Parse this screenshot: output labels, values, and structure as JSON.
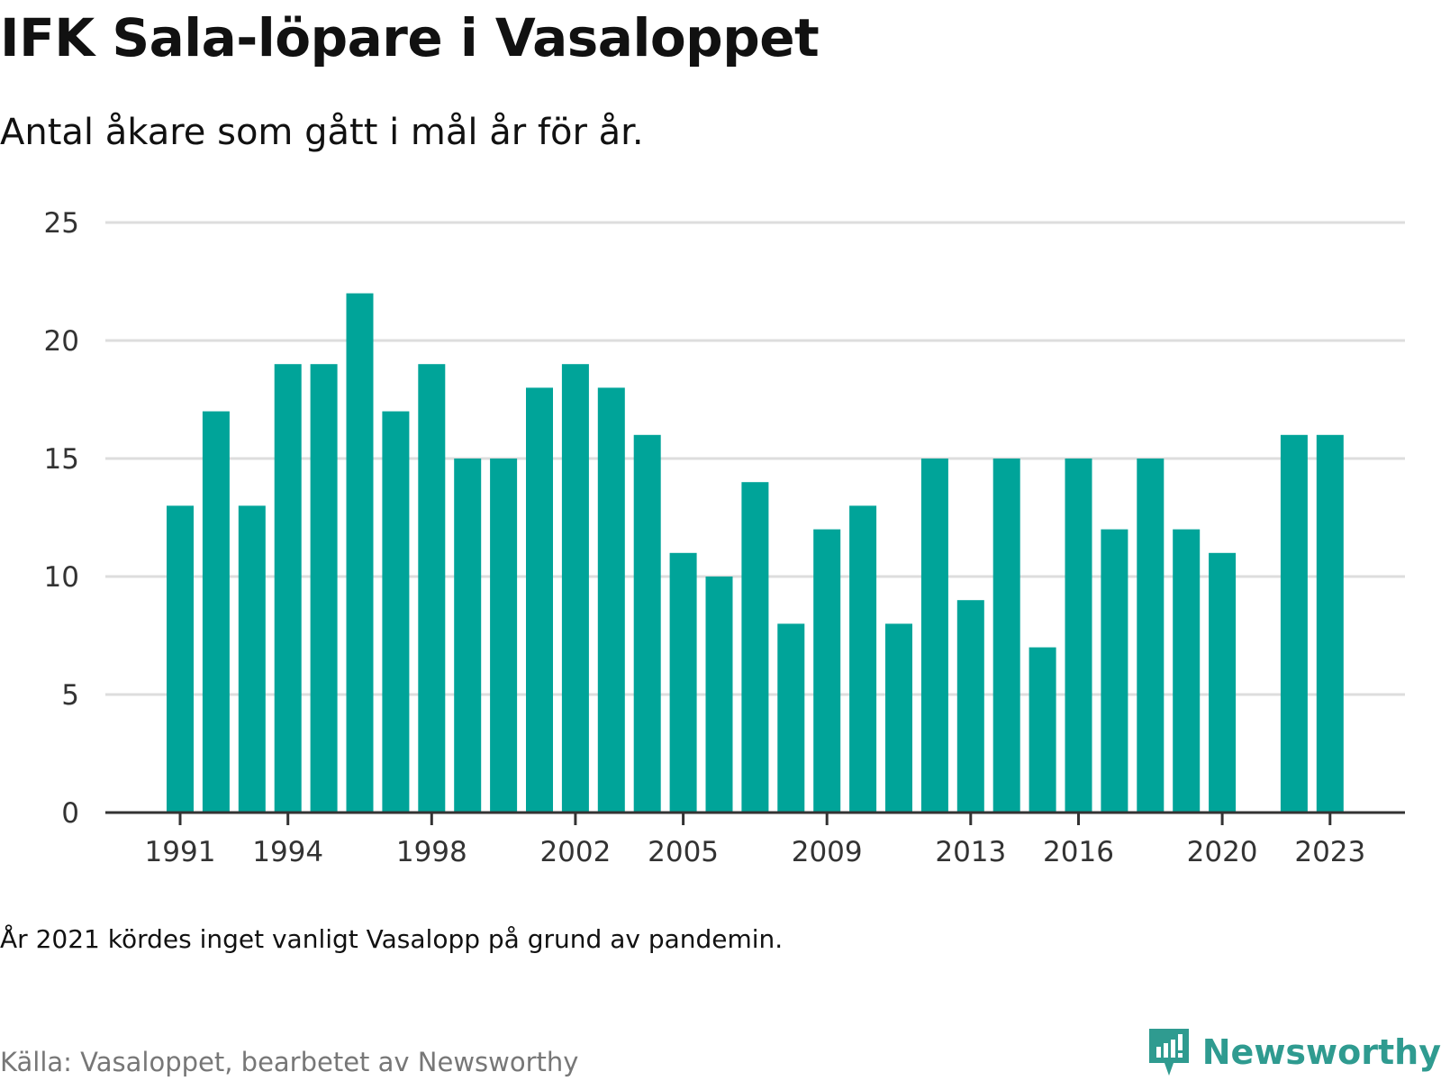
{
  "title": "IFK Sala-löpare i Vasaloppet",
  "subtitle": "Antal åkare som gått i mål år för år.",
  "note": "År 2021 kördes inget vanligt Vasalopp på grund av pandemin.",
  "source": "Källa: Vasaloppet, bearbetet av Newsworthy",
  "brand": {
    "name": "Newsworthy",
    "icon": "newsworthy-logo-icon"
  },
  "colors": {
    "bar": "#00a499",
    "grid": "#dddddd",
    "axis": "#333333",
    "brand": "#2f9b90"
  },
  "chart_data": {
    "type": "bar",
    "x": [
      1991,
      1992,
      1993,
      1994,
      1995,
      1996,
      1997,
      1998,
      1999,
      2000,
      2001,
      2002,
      2003,
      2004,
      2005,
      2006,
      2007,
      2008,
      2009,
      2010,
      2011,
      2012,
      2013,
      2014,
      2015,
      2016,
      2017,
      2018,
      2019,
      2020,
      2021,
      2022,
      2023
    ],
    "values": [
      13,
      17,
      13,
      19,
      19,
      22,
      17,
      19,
      15,
      15,
      18,
      19,
      18,
      16,
      11,
      10,
      14,
      8,
      12,
      13,
      8,
      15,
      9,
      15,
      7,
      15,
      12,
      15,
      12,
      11,
      null,
      16,
      16
    ],
    "x_tick_labels": [
      1991,
      1994,
      1998,
      2002,
      2005,
      2009,
      2013,
      2016,
      2020,
      2023
    ],
    "y_ticks": [
      0,
      5,
      10,
      15,
      20,
      25
    ],
    "ylim": [
      0,
      25
    ],
    "xlabel": "",
    "ylabel": "",
    "grid": true
  }
}
